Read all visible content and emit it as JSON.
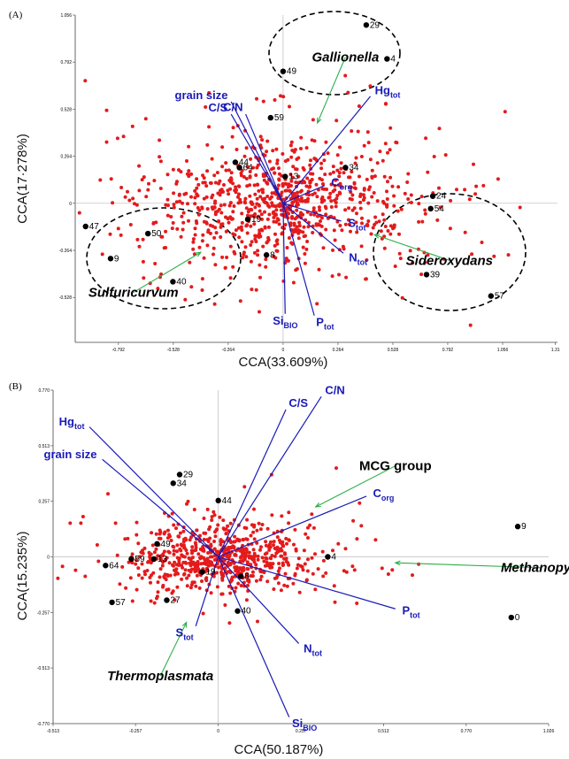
{
  "chart_data": [
    {
      "panel": "(A)",
      "type": "scatter",
      "xlabel": "CCA(33.609%)",
      "ylabel": "CCA(17·278%)",
      "xlim": [
        -1.0,
        1.32
      ],
      "ylim": [
        -0.78,
        1.056
      ],
      "xticks": [
        "-0.792",
        "-0.528",
        "-0.264",
        "0",
        "0.264",
        "0.528",
        "0.792",
        "1.056",
        "1.31"
      ],
      "yticks": [
        "1.056",
        "0.792",
        "0.528",
        "0.264",
        "0",
        "-0.264",
        "-0.528"
      ],
      "samples": [
        {
          "label": "29",
          "x": 0.4,
          "y": 1.0
        },
        {
          "label": "4",
          "x": 0.5,
          "y": 0.81
        },
        {
          "label": "49",
          "x": 0.0,
          "y": 0.74
        },
        {
          "label": "59",
          "x": -0.06,
          "y": 0.48
        },
        {
          "label": "44",
          "x": -0.23,
          "y": 0.23
        },
        {
          "label": "64",
          "x": -0.21,
          "y": 0.2
        },
        {
          "label": "34",
          "x": 0.3,
          "y": 0.2
        },
        {
          "label": "13",
          "x": 0.01,
          "y": 0.15
        },
        {
          "label": "19",
          "x": -0.17,
          "y": -0.09
        },
        {
          "label": "8",
          "x": -0.08,
          "y": -0.29
        },
        {
          "label": "24",
          "x": 0.72,
          "y": 0.04
        },
        {
          "label": "54",
          "x": 0.71,
          "y": -0.03
        },
        {
          "label": "39",
          "x": 0.69,
          "y": -0.4
        },
        {
          "label": "57",
          "x": 1.0,
          "y": -0.52
        },
        {
          "label": "47",
          "x": -0.95,
          "y": -0.13
        },
        {
          "label": "50",
          "x": -0.65,
          "y": -0.17
        },
        {
          "label": "9",
          "x": -0.83,
          "y": -0.31
        },
        {
          "label": "40",
          "x": -0.53,
          "y": -0.44
        }
      ],
      "vectors": [
        {
          "name": "grain size",
          "sub": "",
          "x": -0.25,
          "y": 0.57
        },
        {
          "name": "C/S",
          "sub": "",
          "x": -0.25,
          "y": 0.5
        },
        {
          "name": "C/N",
          "sub": "",
          "x": -0.18,
          "y": 0.5
        },
        {
          "name": "Hg",
          "sub": "tot",
          "x": 0.42,
          "y": 0.6
        },
        {
          "name": "C",
          "sub": "org",
          "x": 0.2,
          "y": 0.1
        },
        {
          "name": "S",
          "sub": "tot",
          "x": 0.28,
          "y": -0.1
        },
        {
          "name": "N",
          "sub": "tot",
          "x": 0.29,
          "y": -0.28
        },
        {
          "name": "Si",
          "sub": "BIO",
          "x": 0.01,
          "y": -0.62
        },
        {
          "name": "P",
          "sub": "tot",
          "x": 0.15,
          "y": -0.63
        }
      ],
      "taxa": [
        {
          "name": "Gallionella",
          "x": 0.3,
          "y": 0.82
        },
        {
          "name": "Sideroxydans",
          "x": 0.8,
          "y": -0.32
        },
        {
          "name": "Sulfuricurvum",
          "x": -0.72,
          "y": -0.5
        }
      ]
    },
    {
      "panel": "(B)",
      "type": "scatter",
      "xlabel": "CCA(50.187%)",
      "ylabel": "CCA(15.235%)",
      "xlim": [
        -0.513,
        1.026
      ],
      "ylim": [
        -0.77,
        0.77
      ],
      "xticks": [
        "-0.513",
        "-0.257",
        "0",
        "0.257",
        "0.513",
        "0.770",
        "1.026"
      ],
      "yticks": [
        "0.770",
        "0.513",
        "0.257",
        "0",
        "-0.257",
        "-0.513",
        "-0.770"
      ],
      "samples": [
        {
          "label": "29",
          "x": -0.12,
          "y": 0.38
        },
        {
          "label": "34",
          "x": -0.14,
          "y": 0.34
        },
        {
          "label": "44",
          "x": 0.0,
          "y": 0.26
        },
        {
          "label": "49",
          "x": -0.19,
          "y": 0.06
        },
        {
          "label": "64",
          "x": -0.35,
          "y": -0.04
        },
        {
          "label": "59",
          "x": -0.27,
          "y": -0.01
        },
        {
          "label": "13",
          "x": -0.2,
          "y": -0.01
        },
        {
          "label": "19",
          "x": -0.05,
          "y": -0.07
        },
        {
          "label": "8",
          "x": 0.07,
          "y": -0.09
        },
        {
          "label": "57",
          "x": -0.33,
          "y": -0.21
        },
        {
          "label": "27",
          "x": -0.16,
          "y": -0.2
        },
        {
          "label": "40",
          "x": 0.06,
          "y": -0.25
        },
        {
          "label": "4",
          "x": 0.34,
          "y": 0.0
        },
        {
          "label": "9",
          "x": 0.93,
          "y": 0.14
        },
        {
          "label": "0",
          "x": 0.91,
          "y": -0.28
        }
      ],
      "vectors": [
        {
          "name": "Hg",
          "sub": "tot",
          "x": -0.4,
          "y": 0.6
        },
        {
          "name": "grain size",
          "sub": "",
          "x": -0.36,
          "y": 0.45
        },
        {
          "name": "C/S",
          "sub": "",
          "x": 0.21,
          "y": 0.68
        },
        {
          "name": "C/N",
          "sub": "",
          "x": 0.32,
          "y": 0.74
        },
        {
          "name": "C",
          "sub": "org",
          "x": 0.46,
          "y": 0.28
        },
        {
          "name": "P",
          "sub": "tot",
          "x": 0.55,
          "y": -0.24
        },
        {
          "name": "N",
          "sub": "tot",
          "x": 0.25,
          "y": -0.4
        },
        {
          "name": "S",
          "sub": "tot",
          "x": -0.07,
          "y": -0.32
        },
        {
          "name": "Si",
          "sub": "BIO",
          "x": 0.22,
          "y": -0.74
        }
      ],
      "taxa": [
        {
          "name": "MCG group",
          "x": 0.55,
          "y": 0.42,
          "italic": false
        },
        {
          "name": "Methanopyri",
          "x": 1.0,
          "y": -0.05,
          "italic": true
        },
        {
          "name": "Thermoplasmata",
          "x": -0.18,
          "y": -0.55,
          "italic": true
        }
      ]
    }
  ]
}
